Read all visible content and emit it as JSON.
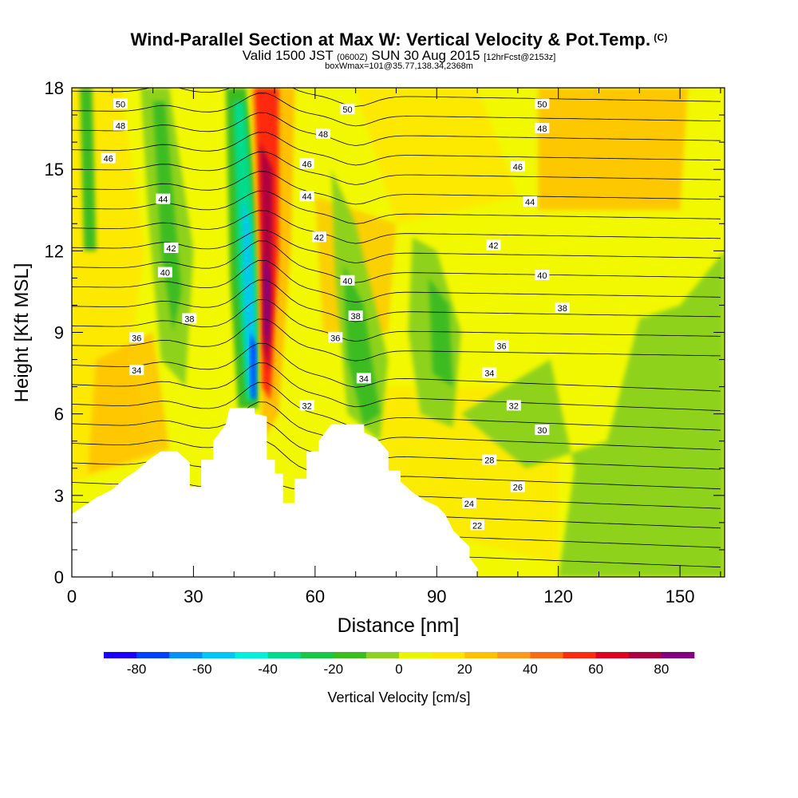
{
  "header": {
    "title": "Wind-Parallel Section at Max W: Vertical Velocity & Pot.Temp.",
    "copyright": "(C)",
    "valid_main": "Valid 1500 JST",
    "valid_utc": "(0600Z)",
    "valid_date": "SUN 30 Aug 2015",
    "forecast": "[12hrFcst@2153z]",
    "box_info": "boxWmax=101@35.77,138.34,2368m"
  },
  "chart_data": {
    "type": "heatmap",
    "title": "Wind-Parallel Section at Max W: Vertical Velocity & Pot.Temp.",
    "xlabel": "Distance [nm]",
    "ylabel": "Height [Kft MSL]",
    "xlim": [
      0,
      161
    ],
    "ylim": [
      0,
      18
    ],
    "x_ticks": [
      "0",
      "30",
      "60",
      "90",
      "120",
      "150"
    ],
    "y_ticks": [
      "0",
      "3",
      "6",
      "9",
      "12",
      "15",
      "18"
    ],
    "colorbar": {
      "label": "Vertical Velocity [cm/s]",
      "ticks": [
        "-80",
        "-60",
        "-40",
        "-20",
        "0",
        "20",
        "40",
        "60",
        "80"
      ],
      "levels": [
        -90,
        -80,
        -70,
        -60,
        -50,
        -40,
        -30,
        -20,
        -10,
        0,
        10,
        20,
        30,
        40,
        50,
        60,
        70,
        80,
        90
      ],
      "colors": [
        "#1a00ff",
        "#0040ff",
        "#0090ff",
        "#00c8f0",
        "#00f0d8",
        "#00dc8c",
        "#14c84a",
        "#3cbc20",
        "#8fd21e",
        "#e8f500",
        "#ffe600",
        "#ffc000",
        "#ff9a18",
        "#ff6a10",
        "#ff2a10",
        "#e00020",
        "#b00040",
        "#820080"
      ]
    },
    "terrain_kft": [
      [
        0,
        2.3
      ],
      [
        3,
        2.6
      ],
      [
        6,
        2.9
      ],
      [
        10,
        3.2
      ],
      [
        13,
        3.6
      ],
      [
        16,
        3.9
      ],
      [
        19,
        4.3
      ],
      [
        22,
        4.6
      ],
      [
        26,
        4.6
      ],
      [
        29,
        4.2
      ],
      [
        29,
        3.3
      ],
      [
        32,
        3.3
      ],
      [
        32,
        4.3
      ],
      [
        35,
        4.3
      ],
      [
        35,
        5.0
      ],
      [
        38,
        5.6
      ],
      [
        39,
        6.2
      ],
      [
        45,
        6.2
      ],
      [
        45,
        6.0
      ],
      [
        48,
        5.9
      ],
      [
        48,
        4.3
      ],
      [
        50,
        4.3
      ],
      [
        50,
        3.8
      ],
      [
        52,
        3.8
      ],
      [
        52,
        2.7
      ],
      [
        55,
        2.7
      ],
      [
        55,
        3.6
      ],
      [
        58,
        3.6
      ],
      [
        58,
        4.6
      ],
      [
        61,
        4.6
      ],
      [
        61,
        5.0
      ],
      [
        64,
        5.6
      ],
      [
        72,
        5.6
      ],
      [
        72,
        5.3
      ],
      [
        75,
        5.1
      ],
      [
        78,
        4.6
      ],
      [
        78,
        3.9
      ],
      [
        81,
        3.9
      ],
      [
        81,
        3.5
      ],
      [
        84,
        3.1
      ],
      [
        87,
        2.8
      ],
      [
        90,
        2.6
      ],
      [
        92,
        2.3
      ],
      [
        94,
        1.7
      ],
      [
        96,
        1.4
      ],
      [
        98,
        1.1
      ],
      [
        98,
        0.7
      ],
      [
        100,
        0.3
      ],
      [
        100,
        0
      ]
    ],
    "green_zones_cm_s": [
      {
        "x": 23,
        "y": 13.5,
        "value": -20
      },
      {
        "x": 43,
        "y": 8.5,
        "value": -40
      },
      {
        "x": 71,
        "y": 8.0,
        "value": -20
      },
      {
        "x": 92,
        "y": 9.5,
        "value": -20
      },
      {
        "x": 140,
        "y": 4.5,
        "value": -10
      }
    ],
    "updraft_cm_s": [
      {
        "x": 48,
        "y": 9.5,
        "value": 90
      },
      {
        "x": 6,
        "y": 13.0,
        "value": 20
      },
      {
        "x": 134,
        "y": 15.5,
        "value": 20
      }
    ],
    "theta_labels": [
      {
        "text": "50",
        "x": 12,
        "y": 17.4
      },
      {
        "text": "48",
        "x": 12,
        "y": 16.6
      },
      {
        "text": "46",
        "x": 9,
        "y": 15.4
      },
      {
        "text": "44",
        "x": 22.5,
        "y": 13.9
      },
      {
        "text": "42",
        "x": 24.5,
        "y": 12.1
      },
      {
        "text": "40",
        "x": 23,
        "y": 11.2
      },
      {
        "text": "38",
        "x": 29,
        "y": 9.5
      },
      {
        "text": "36",
        "x": 16,
        "y": 8.8
      },
      {
        "text": "34",
        "x": 16,
        "y": 7.6
      },
      {
        "text": "50",
        "x": 68,
        "y": 17.2
      },
      {
        "text": "48",
        "x": 62,
        "y": 16.3
      },
      {
        "text": "46",
        "x": 58,
        "y": 15.2
      },
      {
        "text": "44",
        "x": 58,
        "y": 14.0
      },
      {
        "text": "42",
        "x": 61,
        "y": 12.5
      },
      {
        "text": "40",
        "x": 68,
        "y": 10.9
      },
      {
        "text": "38",
        "x": 70,
        "y": 9.6
      },
      {
        "text": "36",
        "x": 65,
        "y": 8.8
      },
      {
        "text": "34",
        "x": 72,
        "y": 7.3
      },
      {
        "text": "32",
        "x": 58,
        "y": 6.3
      },
      {
        "text": "50",
        "x": 116,
        "y": 17.4
      },
      {
        "text": "48",
        "x": 116,
        "y": 16.5
      },
      {
        "text": "46",
        "x": 110,
        "y": 15.1
      },
      {
        "text": "44",
        "x": 113,
        "y": 13.8
      },
      {
        "text": "42",
        "x": 104,
        "y": 12.2
      },
      {
        "text": "40",
        "x": 116,
        "y": 11.1
      },
      {
        "text": "38",
        "x": 121,
        "y": 9.9
      },
      {
        "text": "36",
        "x": 106,
        "y": 8.5
      },
      {
        "text": "34",
        "x": 103,
        "y": 7.5
      },
      {
        "text": "32",
        "x": 109,
        "y": 6.3
      },
      {
        "text": "30",
        "x": 116,
        "y": 5.4
      },
      {
        "text": "28",
        "x": 103,
        "y": 4.3
      },
      {
        "text": "26",
        "x": 110,
        "y": 3.3
      },
      {
        "text": "24",
        "x": 98,
        "y": 2.7
      },
      {
        "text": "22",
        "x": 100,
        "y": 1.9
      }
    ],
    "grid": false,
    "legend": "bottom"
  }
}
